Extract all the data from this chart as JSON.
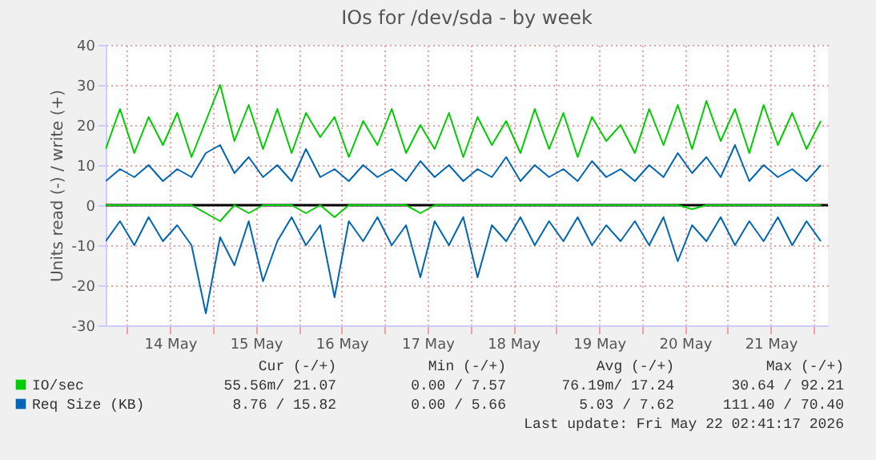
{
  "chart_data": {
    "type": "line",
    "title": "IOs for /dev/sda - by week",
    "ylabel": "Units read (-) / write (+)",
    "x": [
      "2026-05-13T18:00",
      "2026-05-13T22:00",
      "2026-05-14T02:00",
      "2026-05-14T06:00",
      "2026-05-14T10:00",
      "2026-05-14T14:00",
      "2026-05-14T18:00",
      "2026-05-14T22:00",
      "2026-05-15T02:00",
      "2026-05-15T06:00",
      "2026-05-15T10:00",
      "2026-05-15T14:00",
      "2026-05-15T18:00",
      "2026-05-15T22:00",
      "2026-05-16T02:00",
      "2026-05-16T06:00",
      "2026-05-16T10:00",
      "2026-05-16T14:00",
      "2026-05-16T18:00",
      "2026-05-16T22:00",
      "2026-05-17T02:00",
      "2026-05-17T06:00",
      "2026-05-17T10:00",
      "2026-05-17T14:00",
      "2026-05-17T18:00",
      "2026-05-17T22:00",
      "2026-05-18T02:00",
      "2026-05-18T06:00",
      "2026-05-18T10:00",
      "2026-05-18T14:00",
      "2026-05-18T18:00",
      "2026-05-18T22:00",
      "2026-05-19T02:00",
      "2026-05-19T06:00",
      "2026-05-19T10:00",
      "2026-05-19T14:00",
      "2026-05-19T18:00",
      "2026-05-19T22:00",
      "2026-05-20T02:00",
      "2026-05-20T06:00",
      "2026-05-20T10:00",
      "2026-05-20T14:00",
      "2026-05-20T18:00",
      "2026-05-20T22:00",
      "2026-05-21T02:00",
      "2026-05-21T06:00",
      "2026-05-21T10:00",
      "2026-05-21T14:00",
      "2026-05-21T18:00",
      "2026-05-21T22:00",
      "2026-05-22T02:00"
    ],
    "series": [
      {
        "name": "IO/sec",
        "color": "#00cc00",
        "values": [
          14,
          24,
          13,
          22,
          15,
          23,
          12,
          21,
          30,
          16,
          25,
          14,
          24,
          13,
          23,
          17,
          22,
          12,
          21,
          15,
          24,
          13,
          20,
          14,
          23,
          12,
          22,
          15,
          21,
          13,
          24,
          14,
          23,
          12,
          22,
          16,
          20,
          13,
          24,
          15,
          25,
          14,
          26,
          16,
          24,
          13,
          25,
          15,
          23,
          14,
          21
        ]
      },
      {
        "color": "#00cc00",
        "values": [
          0,
          0,
          0,
          0,
          0,
          0,
          0,
          -2,
          -4,
          0,
          -2,
          0,
          0,
          0,
          -2,
          0,
          -3,
          0,
          0,
          0,
          0,
          0,
          -2,
          0,
          0,
          0,
          0,
          0,
          0,
          0,
          0,
          0,
          0,
          0,
          0,
          0,
          0,
          0,
          0,
          0,
          0,
          -1,
          0,
          0,
          0,
          0,
          0,
          0,
          0,
          0,
          0
        ]
      },
      {
        "name": "Req Size (KB)",
        "color": "#0066b3",
        "values": [
          6,
          9,
          7,
          10,
          6,
          9,
          7,
          13,
          15,
          8,
          12,
          7,
          10,
          6,
          14,
          7,
          9,
          6,
          10,
          7,
          9,
          6,
          11,
          7,
          10,
          6,
          9,
          7,
          12,
          6,
          10,
          7,
          9,
          6,
          11,
          7,
          9,
          6,
          10,
          7,
          13,
          8,
          12,
          7,
          15,
          6,
          10,
          7,
          9,
          6,
          10
        ]
      },
      {
        "color": "#0066b3",
        "values": [
          -9,
          -4,
          -10,
          -3,
          -9,
          -5,
          -10,
          -27,
          -8,
          -15,
          -4,
          -19,
          -9,
          -3,
          -10,
          -5,
          -23,
          -4,
          -9,
          -3,
          -10,
          -5,
          -18,
          -4,
          -10,
          -3,
          -18,
          -5,
          -9,
          -3,
          -10,
          -4,
          -9,
          -3,
          -10,
          -5,
          -9,
          -4,
          -10,
          -3,
          -14,
          -5,
          -9,
          -3,
          -10,
          -4,
          -9,
          -3,
          -10,
          -4,
          -9
        ]
      }
    ],
    "xlim": [
      "2026-05-13T18:00",
      "2026-05-22T04:00"
    ],
    "xticks": [
      {
        "value": "2026-05-14T00:00",
        "label": null
      },
      {
        "value": "2026-05-14T12:00",
        "label": "14 May"
      },
      {
        "value": "2026-05-15T00:00",
        "label": null
      },
      {
        "value": "2026-05-15T12:00",
        "label": "15 May"
      },
      {
        "value": "2026-05-16T00:00",
        "label": null
      },
      {
        "value": "2026-05-16T12:00",
        "label": "16 May"
      },
      {
        "value": "2026-05-17T00:00",
        "label": null
      },
      {
        "value": "2026-05-17T12:00",
        "label": "17 May"
      },
      {
        "value": "2026-05-18T00:00",
        "label": null
      },
      {
        "value": "2026-05-18T12:00",
        "label": "18 May"
      },
      {
        "value": "2026-05-19T00:00",
        "label": null
      },
      {
        "value": "2026-05-19T12:00",
        "label": "19 May"
      },
      {
        "value": "2026-05-20T00:00",
        "label": null
      },
      {
        "value": "2026-05-20T12:00",
        "label": "20 May"
      },
      {
        "value": "2026-05-21T00:00",
        "label": null
      },
      {
        "value": "2026-05-21T12:00",
        "label": "21 May"
      },
      {
        "value": "2026-05-22T00:00",
        "label": null
      }
    ],
    "ylim": [
      -30,
      40
    ],
    "yticks": [
      -30,
      -20,
      -10,
      0,
      10,
      20,
      30,
      40
    ],
    "ref_lines": [
      {
        "axis": "y",
        "value": 0,
        "color": "#000000"
      }
    ],
    "grid": true,
    "legend": "bottom",
    "line_style": "solid",
    "marker": "none",
    "annotations": [
      "Cur (-/+)",
      "Min (-/+)",
      "Avg (-/+)",
      "Max (-/+)",
      "55.56m/ 21.07",
      "0.00 /  7.57",
      "76.19m/ 17.24",
      "30.64 / 92.21",
      "8.76 / 15.82",
      "0.00 /  5.66",
      "5.03 /  7.62",
      "111.40 / 70.40",
      "Last update: Fri May 22 02:41:17 2026"
    ]
  }
}
